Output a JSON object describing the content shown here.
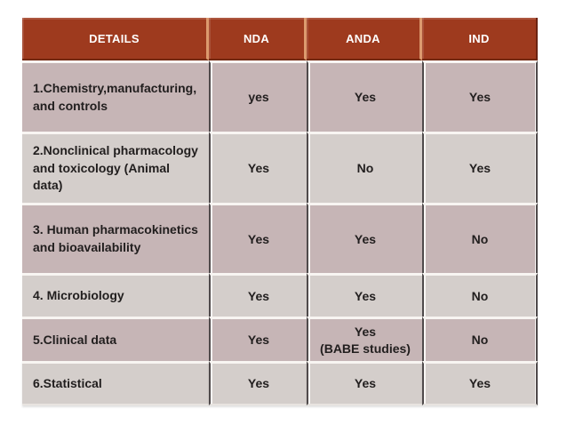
{
  "table": {
    "headers": [
      "DETAILS",
      "NDA",
      "ANDA",
      "IND"
    ],
    "rows": [
      {
        "details": "1.Chemistry,manufacturing,\nand controls",
        "nda": "yes",
        "anda": "Yes",
        "ind": "Yes"
      },
      {
        "details": "2.Nonclinical pharmacology\nand toxicology (Animal data)",
        "nda": "Yes",
        "anda": "No",
        "ind": "Yes"
      },
      {
        "details": "3. Human pharmacokinetics\nand bioavailability",
        "nda": "Yes",
        "anda": "Yes",
        "ind": "No"
      },
      {
        "details": "4. Microbiology",
        "nda": "Yes",
        "anda": "Yes",
        "ind": "No"
      },
      {
        "details": "5.Clinical data",
        "nda": "Yes",
        "anda": "Yes\n(BABE studies)",
        "ind": "No"
      },
      {
        "details": "6.Statistical",
        "nda": "Yes",
        "anda": "Yes",
        "ind": "Yes"
      }
    ]
  },
  "colors": {
    "header_bg": "#9E3A1E",
    "header_text": "#FFFFFF",
    "header_divider": "#DC9A6E",
    "row_odd_bg": "#C6B5B6",
    "row_even_bg": "#D4CECB",
    "body_text": "#211E1E",
    "column_divider": "#4F4A4B",
    "row_gap": "#F8F5F2",
    "page_bg": "#FFFFFF"
  }
}
